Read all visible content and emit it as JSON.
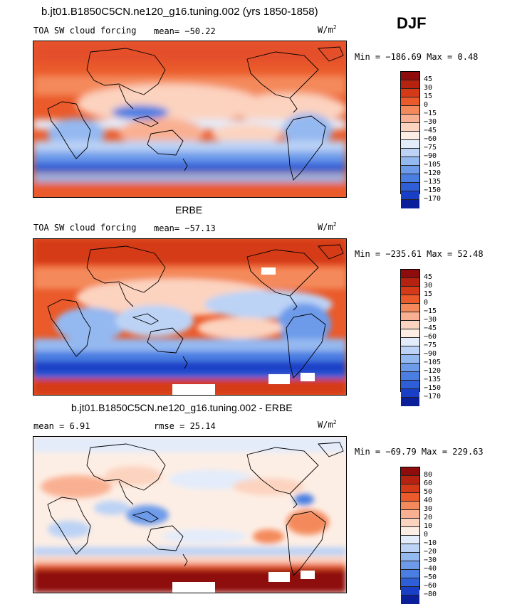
{
  "season": "DJF",
  "panels": [
    {
      "title": "b.jt01.B1850C5CN.ne120_g16.tuning.002 (yrs 1850-1858)",
      "variable": "TOA SW cloud forcing",
      "mean_label": "mean= −50.22",
      "units_base": "W/m",
      "units_exp": "2",
      "minmax": "Min = −186.69 Max =   0.48",
      "levels": [
        "45",
        "30",
        "15",
        "0",
        "−15",
        "−30",
        "−45",
        "−60",
        "−75",
        "−90",
        "−105",
        "−120",
        "−135",
        "−150",
        "−170"
      ],
      "colors": [
        "#8e0c0c",
        "#b5220f",
        "#d43a18",
        "#ea5a2a",
        "#f48a5c",
        "#f9b092",
        "#fcd3bf",
        "#fdeee5",
        "#e3ecfb",
        "#bcd3f6",
        "#94b8f0",
        "#6d9bea",
        "#4a7ee2",
        "#2f5fd8",
        "#1a3fc7",
        "#0b1f9b"
      ]
    },
    {
      "title": "ERBE",
      "variable": "TOA SW cloud forcing",
      "mean_label": "mean= −57.13",
      "units_base": "W/m",
      "units_exp": "2",
      "minmax": "Min = −235.61 Max =  52.48",
      "levels": [
        "45",
        "30",
        "15",
        "0",
        "−15",
        "−30",
        "−45",
        "−60",
        "−75",
        "−90",
        "−105",
        "−120",
        "−135",
        "−150",
        "−170"
      ],
      "colors": [
        "#8e0c0c",
        "#b5220f",
        "#d43a18",
        "#ea5a2a",
        "#f48a5c",
        "#f9b092",
        "#fcd3bf",
        "#fdeee5",
        "#e3ecfb",
        "#bcd3f6",
        "#94b8f0",
        "#6d9bea",
        "#4a7ee2",
        "#2f5fd8",
        "#1a3fc7",
        "#0b1f9b"
      ]
    },
    {
      "title": "b.jt01.B1850C5CN.ne120_g16.tuning.002 - ERBE",
      "variable": "",
      "mean_label": "mean =     6.91",
      "rmse_label": "rmse =   25.14",
      "units_base": "W/m",
      "units_exp": "2",
      "minmax": "Min = −69.79 Max = 229.63",
      "levels": [
        "80",
        "60",
        "50",
        "40",
        "30",
        "20",
        "10",
        "0",
        "−10",
        "−20",
        "−30",
        "−40",
        "−50",
        "−60",
        "−80"
      ],
      "colors": [
        "#8e0c0c",
        "#b5220f",
        "#d43a18",
        "#ea5a2a",
        "#f48a5c",
        "#f9b092",
        "#fcd3bf",
        "#fdeee5",
        "#e3ecfb",
        "#bcd3f6",
        "#94b8f0",
        "#6d9bea",
        "#4a7ee2",
        "#2f5fd8",
        "#1a3fc7",
        "#0b1f9b"
      ]
    }
  ]
}
